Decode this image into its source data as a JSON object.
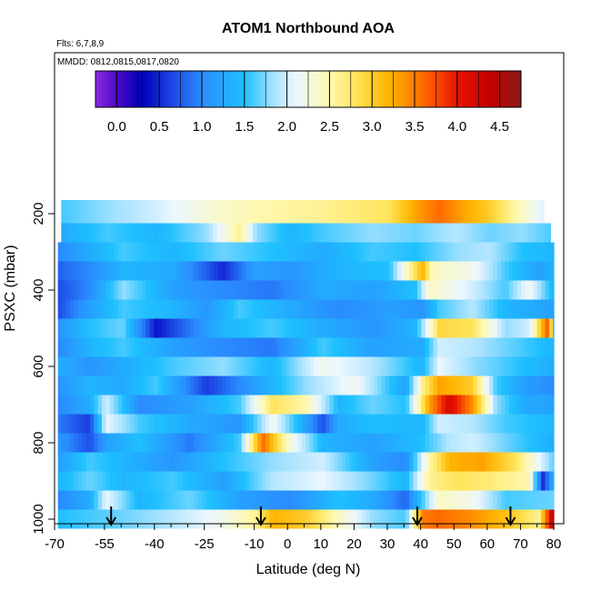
{
  "chart_data": {
    "type": "heatmap",
    "title": "ATOM1 Northbound AOA",
    "annotations": [
      "Flts: 6,7,8,9",
      "MMDD: 0812,0815,0817,0820"
    ],
    "xlabel": "Latitude (deg N)",
    "ylabel": "PSXC (mbar)",
    "xlim": [
      -70,
      83
    ],
    "ylim": [
      1000,
      150
    ],
    "y_reversed": true,
    "x_ticks": [
      -70,
      -55,
      -40,
      -25,
      -10,
      0,
      10,
      20,
      30,
      40,
      50,
      60,
      70,
      80
    ],
    "x_tick_labels": [
      "-70",
      "-55",
      "-40",
      "-25",
      "-10",
      "0",
      "10",
      "20",
      "30",
      "40",
      "50",
      "60",
      "70",
      "80"
    ],
    "y_ticks": [
      200,
      400,
      600,
      800,
      1000
    ],
    "y_tick_labels": [
      "200",
      "400",
      "600",
      "800",
      "1000"
    ],
    "colorbar": {
      "range": [
        -0.25,
        4.75
      ],
      "ticks": [
        0.0,
        0.5,
        1.0,
        1.5,
        2.0,
        2.5,
        3.0,
        3.5,
        4.0,
        4.5
      ],
      "tick_labels": [
        "0.0",
        "0.5",
        "1.0",
        "1.5",
        "2.0",
        "2.5",
        "3.0",
        "3.5",
        "4.0",
        "4.5"
      ],
      "colors": [
        [
          -0.25,
          "#8a2be2"
        ],
        [
          0.0,
          "#4b0ac8"
        ],
        [
          0.3,
          "#0000b8"
        ],
        [
          0.6,
          "#1a3ce0"
        ],
        [
          1.0,
          "#2a8cff"
        ],
        [
          1.5,
          "#1ec0ff"
        ],
        [
          1.85,
          "#a8e2ff"
        ],
        [
          2.1,
          "#ebf7ff"
        ],
        [
          2.5,
          "#fff8b0"
        ],
        [
          2.8,
          "#ffe45a"
        ],
        [
          3.2,
          "#ffb400"
        ],
        [
          3.6,
          "#ff6a00"
        ],
        [
          4.0,
          "#e81400"
        ],
        [
          4.4,
          "#c00000"
        ],
        [
          4.75,
          "#8b1a1a"
        ]
      ]
    },
    "flight_markers_lat": [
      -53,
      -8,
      39,
      67
    ],
    "levels": [
      {
        "p": 200,
        "lon": -68,
        "lat_max": 77,
        "segments": [
          [
            -68,
            1.6
          ],
          [
            -55,
            1.8
          ],
          [
            -40,
            2.0
          ],
          [
            -25,
            2.3
          ],
          [
            -10,
            2.5
          ],
          [
            10,
            2.6
          ],
          [
            30,
            2.8
          ],
          [
            38,
            3.3
          ],
          [
            45,
            3.6
          ],
          [
            52,
            3.3
          ],
          [
            60,
            3.0
          ],
          [
            70,
            2.4
          ],
          [
            77,
            2.0
          ]
        ]
      },
      {
        "p": 250,
        "lon": -68,
        "lat_max": 79,
        "segments": [
          [
            -68,
            1.3
          ],
          [
            -55,
            1.6
          ],
          [
            -40,
            1.4
          ],
          [
            -25,
            1.8
          ],
          [
            -15,
            2.6
          ],
          [
            -10,
            1.8
          ],
          [
            0,
            1.4
          ],
          [
            10,
            1.6
          ],
          [
            25,
            1.8
          ],
          [
            38,
            1.7
          ],
          [
            50,
            1.9
          ],
          [
            60,
            1.7
          ],
          [
            70,
            1.8
          ],
          [
            79,
            1.6
          ]
        ]
      },
      {
        "p": 300,
        "lon": -69,
        "lat_max": 80,
        "segments": [
          [
            -69,
            1.0
          ],
          [
            -60,
            1.3
          ],
          [
            -50,
            1.6
          ],
          [
            -35,
            1.4
          ],
          [
            -20,
            1.7
          ],
          [
            -5,
            1.5
          ],
          [
            10,
            1.3
          ],
          [
            25,
            1.6
          ],
          [
            38,
            1.5
          ],
          [
            50,
            1.8
          ],
          [
            60,
            1.9
          ],
          [
            70,
            1.5
          ],
          [
            80,
            1.4
          ]
        ]
      },
      {
        "p": 350,
        "lon": -69,
        "lat_max": 80,
        "segments": [
          [
            -69,
            0.8
          ],
          [
            -60,
            1.0
          ],
          [
            -50,
            1.4
          ],
          [
            -35,
            1.3
          ],
          [
            -20,
            0.5
          ],
          [
            -10,
            1.2
          ],
          [
            0,
            1.1
          ],
          [
            15,
            1.4
          ],
          [
            30,
            1.5
          ],
          [
            40,
            3.2
          ],
          [
            43,
            2.4
          ],
          [
            55,
            2.2
          ],
          [
            65,
            1.6
          ],
          [
            75,
            1.2
          ],
          [
            80,
            1.4
          ]
        ]
      },
      {
        "p": 400,
        "lon": -69,
        "lat_max": 80,
        "segments": [
          [
            -69,
            0.7
          ],
          [
            -60,
            1.0
          ],
          [
            -50,
            1.8
          ],
          [
            -35,
            1.2
          ],
          [
            -20,
            1.0
          ],
          [
            -5,
            0.9
          ],
          [
            10,
            1.3
          ],
          [
            25,
            1.2
          ],
          [
            38,
            1.5
          ],
          [
            42,
            2.4
          ],
          [
            55,
            2.0
          ],
          [
            65,
            1.6
          ],
          [
            72,
            2.2
          ],
          [
            80,
            1.3
          ]
        ]
      },
      {
        "p": 450,
        "lon": -69,
        "lat_max": 80,
        "segments": [
          [
            -69,
            0.7
          ],
          [
            -60,
            1.2
          ],
          [
            -50,
            1.6
          ],
          [
            -35,
            1.4
          ],
          [
            -25,
            1.1
          ],
          [
            -15,
            1.6
          ],
          [
            0,
            1.3
          ],
          [
            15,
            1.0
          ],
          [
            30,
            1.2
          ],
          [
            40,
            1.1
          ],
          [
            45,
            1.6
          ],
          [
            55,
            1.9
          ],
          [
            65,
            1.4
          ],
          [
            80,
            1.2
          ]
        ]
      },
      {
        "p": 500,
        "lon": -69,
        "lat_max": 80,
        "segments": [
          [
            -69,
            1.1
          ],
          [
            -60,
            1.5
          ],
          [
            -50,
            1.7
          ],
          [
            -40,
            0.4
          ],
          [
            -30,
            0.9
          ],
          [
            -20,
            1.4
          ],
          [
            -5,
            1.6
          ],
          [
            10,
            1.3
          ],
          [
            25,
            1.1
          ],
          [
            38,
            1.4
          ],
          [
            45,
            2.9
          ],
          [
            55,
            2.8
          ],
          [
            65,
            1.8
          ],
          [
            72,
            2.0
          ],
          [
            78,
            3.8
          ],
          [
            80,
            1.0
          ]
        ]
      },
      {
        "p": 550,
        "lon": -69,
        "lat_max": 80,
        "segments": [
          [
            -69,
            1.0
          ],
          [
            -60,
            1.4
          ],
          [
            -50,
            1.6
          ],
          [
            -35,
            1.2
          ],
          [
            -20,
            1.0
          ],
          [
            -5,
            0.9
          ],
          [
            10,
            1.6
          ],
          [
            25,
            1.2
          ],
          [
            40,
            1.3
          ],
          [
            45,
            2.0
          ],
          [
            55,
            1.9
          ],
          [
            65,
            1.7
          ],
          [
            80,
            1.4
          ]
        ]
      },
      {
        "p": 600,
        "lon": -69,
        "lat_max": 80,
        "segments": [
          [
            -69,
            1.3
          ],
          [
            -60,
            1.1
          ],
          [
            -50,
            1.3
          ],
          [
            -35,
            1.6
          ],
          [
            -20,
            1.8
          ],
          [
            -5,
            1.4
          ],
          [
            10,
            2.2
          ],
          [
            25,
            1.9
          ],
          [
            40,
            1.4
          ],
          [
            45,
            2.1
          ],
          [
            55,
            1.8
          ],
          [
            65,
            1.6
          ],
          [
            80,
            1.3
          ]
        ]
      },
      {
        "p": 650,
        "lon": -69,
        "lat_max": 80,
        "segments": [
          [
            -69,
            1.1
          ],
          [
            -60,
            1.4
          ],
          [
            -50,
            1.3
          ],
          [
            -40,
            1.6
          ],
          [
            -25,
            0.6
          ],
          [
            -10,
            1.2
          ],
          [
            5,
            1.8
          ],
          [
            20,
            2.2
          ],
          [
            35,
            1.2
          ],
          [
            40,
            2.6
          ],
          [
            45,
            3.3
          ],
          [
            55,
            3.0
          ],
          [
            62,
            1.6
          ],
          [
            70,
            1.2
          ],
          [
            80,
            1.0
          ]
        ]
      },
      {
        "p": 700,
        "lon": -69,
        "lat_max": 80,
        "segments": [
          [
            -69,
            1.0
          ],
          [
            -60,
            1.3
          ],
          [
            -55,
            2.0
          ],
          [
            -45,
            1.0
          ],
          [
            -30,
            1.2
          ],
          [
            -15,
            1.6
          ],
          [
            -5,
            2.8
          ],
          [
            5,
            2.5
          ],
          [
            15,
            1.4
          ],
          [
            25,
            1.7
          ],
          [
            35,
            1.5
          ],
          [
            42,
            3.3
          ],
          [
            48,
            4.2
          ],
          [
            55,
            3.4
          ],
          [
            62,
            1.8
          ],
          [
            70,
            1.3
          ],
          [
            80,
            1.2
          ]
        ]
      },
      {
        "p": 750,
        "lon": -69,
        "lat_max": 80,
        "segments": [
          [
            -69,
            0.9
          ],
          [
            -60,
            0.6
          ],
          [
            -55,
            2.1
          ],
          [
            -45,
            1.6
          ],
          [
            -30,
            1.3
          ],
          [
            -15,
            1.1
          ],
          [
            -5,
            2.2
          ],
          [
            10,
            0.7
          ],
          [
            15,
            1.3
          ],
          [
            25,
            1.5
          ],
          [
            40,
            1.4
          ],
          [
            45,
            2.0
          ],
          [
            55,
            1.9
          ],
          [
            65,
            1.6
          ],
          [
            80,
            1.4
          ]
        ]
      },
      {
        "p": 800,
        "lon": -69,
        "lat_max": 80,
        "segments": [
          [
            -69,
            1.1
          ],
          [
            -60,
            0.7
          ],
          [
            -55,
            1.2
          ],
          [
            -45,
            1.5
          ],
          [
            -30,
            0.9
          ],
          [
            -15,
            1.6
          ],
          [
            -8,
            3.6
          ],
          [
            0,
            2.3
          ],
          [
            10,
            1.4
          ],
          [
            25,
            1.2
          ],
          [
            40,
            1.5
          ],
          [
            48,
            1.9
          ],
          [
            55,
            2.0
          ],
          [
            65,
            1.7
          ],
          [
            80,
            1.3
          ]
        ]
      },
      {
        "p": 850,
        "lon": -69,
        "lat_max": 80,
        "segments": [
          [
            -69,
            1.2
          ],
          [
            -60,
            1.6
          ],
          [
            -50,
            1.4
          ],
          [
            -35,
            1.1
          ],
          [
            -20,
            1.5
          ],
          [
            -5,
            1.8
          ],
          [
            10,
            2.0
          ],
          [
            25,
            1.2
          ],
          [
            35,
            1.0
          ],
          [
            42,
            2.5
          ],
          [
            48,
            3.2
          ],
          [
            58,
            3.3
          ],
          [
            68,
            2.8
          ],
          [
            80,
            1.6
          ]
        ]
      },
      {
        "p": 900,
        "lon": -69,
        "lat_max": 80,
        "segments": [
          [
            -69,
            1.4
          ],
          [
            -60,
            1.7
          ],
          [
            -50,
            1.4
          ],
          [
            -35,
            1.6
          ],
          [
            -20,
            1.2
          ],
          [
            -5,
            1.9
          ],
          [
            10,
            2.1
          ],
          [
            25,
            1.7
          ],
          [
            35,
            1.4
          ],
          [
            42,
            2.6
          ],
          [
            50,
            2.8
          ],
          [
            60,
            2.7
          ],
          [
            72,
            2.5
          ],
          [
            76,
            0.5
          ],
          [
            80,
            1.5
          ]
        ]
      },
      {
        "p": 950,
        "lon": -69,
        "lat_max": 80,
        "segments": [
          [
            -69,
            1.0
          ],
          [
            -60,
            1.3
          ],
          [
            -55,
            2.1
          ],
          [
            -45,
            1.4
          ],
          [
            -30,
            1.7
          ],
          [
            -15,
            1.2
          ],
          [
            0,
            1.0
          ],
          [
            15,
            1.5
          ],
          [
            25,
            1.3
          ],
          [
            35,
            0.8
          ],
          [
            40,
            1.6
          ],
          [
            45,
            2.4
          ],
          [
            55,
            2.2
          ],
          [
            65,
            1.6
          ],
          [
            80,
            1.7
          ]
        ]
      },
      {
        "p": 1000,
        "lon": -69,
        "lat_max": 80,
        "segments": [
          [
            -69,
            1.5
          ],
          [
            -60,
            1.6
          ],
          [
            -50,
            1.7
          ],
          [
            -35,
            1.9
          ],
          [
            -20,
            2.2
          ],
          [
            -10,
            2.6
          ],
          [
            -5,
            3.2
          ],
          [
            5,
            3.0
          ],
          [
            15,
            2.4
          ],
          [
            25,
            1.8
          ],
          [
            35,
            1.6
          ],
          [
            40,
            3.5
          ],
          [
            45,
            3.6
          ],
          [
            55,
            3.4
          ],
          [
            65,
            3.1
          ],
          [
            75,
            2.6
          ],
          [
            79,
            4.4
          ]
        ]
      }
    ]
  }
}
